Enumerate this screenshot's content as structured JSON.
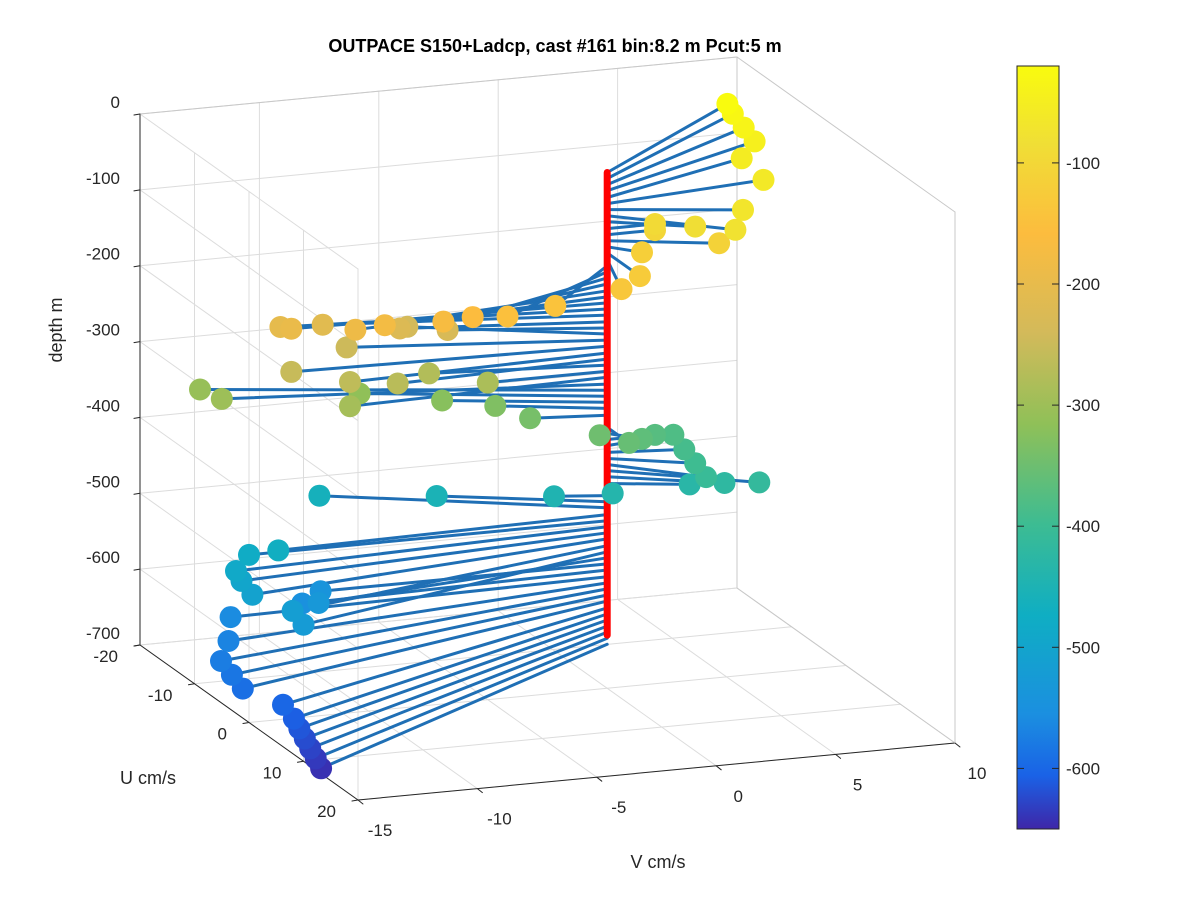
{
  "chart_data": {
    "type": "scatter3d",
    "title": "OUTPACE S150+Ladcp, cast #161 bin:8.2 m  Pcut:5 m",
    "xlabel": "V cm/s",
    "ylabel": "U cm/s",
    "zlabel": "depth m",
    "xlim": [
      -15,
      10
    ],
    "ylim": [
      -20,
      20
    ],
    "zlim": [
      -700,
      0
    ],
    "x_ticks": [
      "-15",
      "-10",
      "-5",
      "0",
      "5",
      "10"
    ],
    "y_ticks": [
      "-20",
      "-10",
      "0",
      "10",
      "20"
    ],
    "z_ticks": [
      "0",
      "-100",
      "-200",
      "-300",
      "-400",
      "-500",
      "-600",
      "-700"
    ],
    "colorbar": {
      "range": [
        -650,
        -20
      ],
      "ticks": [
        "-100",
        "-200",
        "-300",
        "-400",
        "-500",
        "-600"
      ],
      "colormap": "parula"
    },
    "profile_line": {
      "x": 0,
      "y": 0,
      "depth_range": [
        -630,
        -20
      ],
      "color": "#ff0000"
    },
    "stick_color": "#1f6fb5",
    "grid": true,
    "points": [
      {
        "depth": -20,
        "u": -13,
        "v": 8
      },
      {
        "depth": -28,
        "u": -12,
        "v": 8
      },
      {
        "depth": -36,
        "u": -10,
        "v": 8
      },
      {
        "depth": -44,
        "u": -8,
        "v": 8
      },
      {
        "depth": -53,
        "u": -6,
        "v": 7
      },
      {
        "depth": -61,
        "u": -2,
        "v": 7
      },
      {
        "depth": -69,
        "u": 3,
        "v": 5
      },
      {
        "depth": -77,
        "u": 6,
        "v": 4
      },
      {
        "depth": -85,
        "u": 3,
        "v": 3
      },
      {
        "depth": -94,
        "u": 0,
        "v": 2
      },
      {
        "depth": -102,
        "u": 0,
        "v": 2
      },
      {
        "depth": -110,
        "u": 3,
        "v": 4
      },
      {
        "depth": -118,
        "u": 2,
        "v": 1
      },
      {
        "depth": -126,
        "u": 6,
        "v": 0
      },
      {
        "depth": -135,
        "u": 7,
        "v": -1
      },
      {
        "depth": -143,
        "u": 8,
        "v": -4
      },
      {
        "depth": -151,
        "u": 8,
        "v": -6
      },
      {
        "depth": -159,
        "u": 6,
        "v": -7
      },
      {
        "depth": -167,
        "u": 5,
        "v": -8
      },
      {
        "depth": -176,
        "u": 3,
        "v": -10
      },
      {
        "depth": -184,
        "u": 2,
        "v": -11
      },
      {
        "depth": -192,
        "u": -1,
        "v": -13
      },
      {
        "depth": -200,
        "u": -3,
        "v": -13
      },
      {
        "depth": -208,
        "u": -4,
        "v": -11
      },
      {
        "depth": -217,
        "u": -3,
        "v": -8
      },
      {
        "depth": -225,
        "u": -3,
        "v": -6
      },
      {
        "depth": -233,
        "u": -6,
        "v": -7
      },
      {
        "depth": -241,
        "u": -4,
        "v": -10
      },
      {
        "depth": -249,
        "u": -1,
        "v": -13
      },
      {
        "depth": -258,
        "u": 1,
        "v": -11
      },
      {
        "depth": -266,
        "u": 1,
        "v": -9
      },
      {
        "depth": -274,
        "u": -2,
        "v": -7
      },
      {
        "depth": -282,
        "u": 0,
        "v": -5
      },
      {
        "depth": -290,
        "u": 1,
        "v": -11
      },
      {
        "depth": -299,
        "u": -5,
        "v": -15
      },
      {
        "depth": -307,
        "u": -9,
        "v": -15
      },
      {
        "depth": -315,
        "u": -6,
        "v": -9
      },
      {
        "depth": -323,
        "u": -4,
        "v": -6
      },
      {
        "depth": -331,
        "u": -3,
        "v": -4
      },
      {
        "depth": -340,
        "u": -1,
        "v": -3
      },
      {
        "depth": -348,
        "u": 3,
        "v": -1
      },
      {
        "depth": -356,
        "u": 4,
        "v": 0
      },
      {
        "depth": -364,
        "u": 2,
        "v": 1
      },
      {
        "depth": -372,
        "u": 0,
        "v": 2
      },
      {
        "depth": -380,
        "u": -1,
        "v": 3
      },
      {
        "depth": -389,
        "u": 1,
        "v": 3
      },
      {
        "depth": -397,
        "u": 3,
        "v": 3
      },
      {
        "depth": -405,
        "u": 5,
        "v": 3
      },
      {
        "depth": -413,
        "u": 6,
        "v": 5
      },
      {
        "depth": -421,
        "u": 4,
        "v": 4
      },
      {
        "depth": -430,
        "u": 2,
        "v": 3
      },
      {
        "depth": -438,
        "u": 1,
        "v": 0
      },
      {
        "depth": -446,
        "u": -1,
        "v": -2
      },
      {
        "depth": -454,
        "u": -5,
        "v": -6
      },
      {
        "depth": -462,
        "u": -9,
        "v": -10
      },
      {
        "depth": -471,
        "u": 1,
        "v": -14
      },
      {
        "depth": -479,
        "u": 0,
        "v": -15
      },
      {
        "depth": -487,
        "u": 2,
        "v": -16
      },
      {
        "depth": -495,
        "u": 3,
        "v": -16
      },
      {
        "depth": -503,
        "u": 5,
        "v": -16
      },
      {
        "depth": -512,
        "u": 8,
        "v": -15
      },
      {
        "depth": -520,
        "u": 10,
        "v": -15
      },
      {
        "depth": -528,
        "u": 4,
        "v": -13
      },
      {
        "depth": -536,
        "u": 0,
        "v": -12
      },
      {
        "depth": -544,
        "u": 1,
        "v": -13
      },
      {
        "depth": -553,
        "u": 1,
        "v": -16
      },
      {
        "depth": -561,
        "u": 5,
        "v": -17
      },
      {
        "depth": -569,
        "u": 8,
        "v": -18
      },
      {
        "depth": -577,
        "u": 10,
        "v": -18
      },
      {
        "depth": -585,
        "u": 12,
        "v": -18
      },
      {
        "depth": -594,
        "u": 15,
        "v": -17
      },
      {
        "depth": -602,
        "u": 17,
        "v": -17
      },
      {
        "depth": -610,
        "u": 18,
        "v": -17
      },
      {
        "depth": -618,
        "u": 19,
        "v": -17
      },
      {
        "depth": -626,
        "u": 20,
        "v": -17
      },
      {
        "depth": -634,
        "u": 21,
        "v": -17
      },
      {
        "depth": -642,
        "u": 22,
        "v": -17
      }
    ]
  }
}
